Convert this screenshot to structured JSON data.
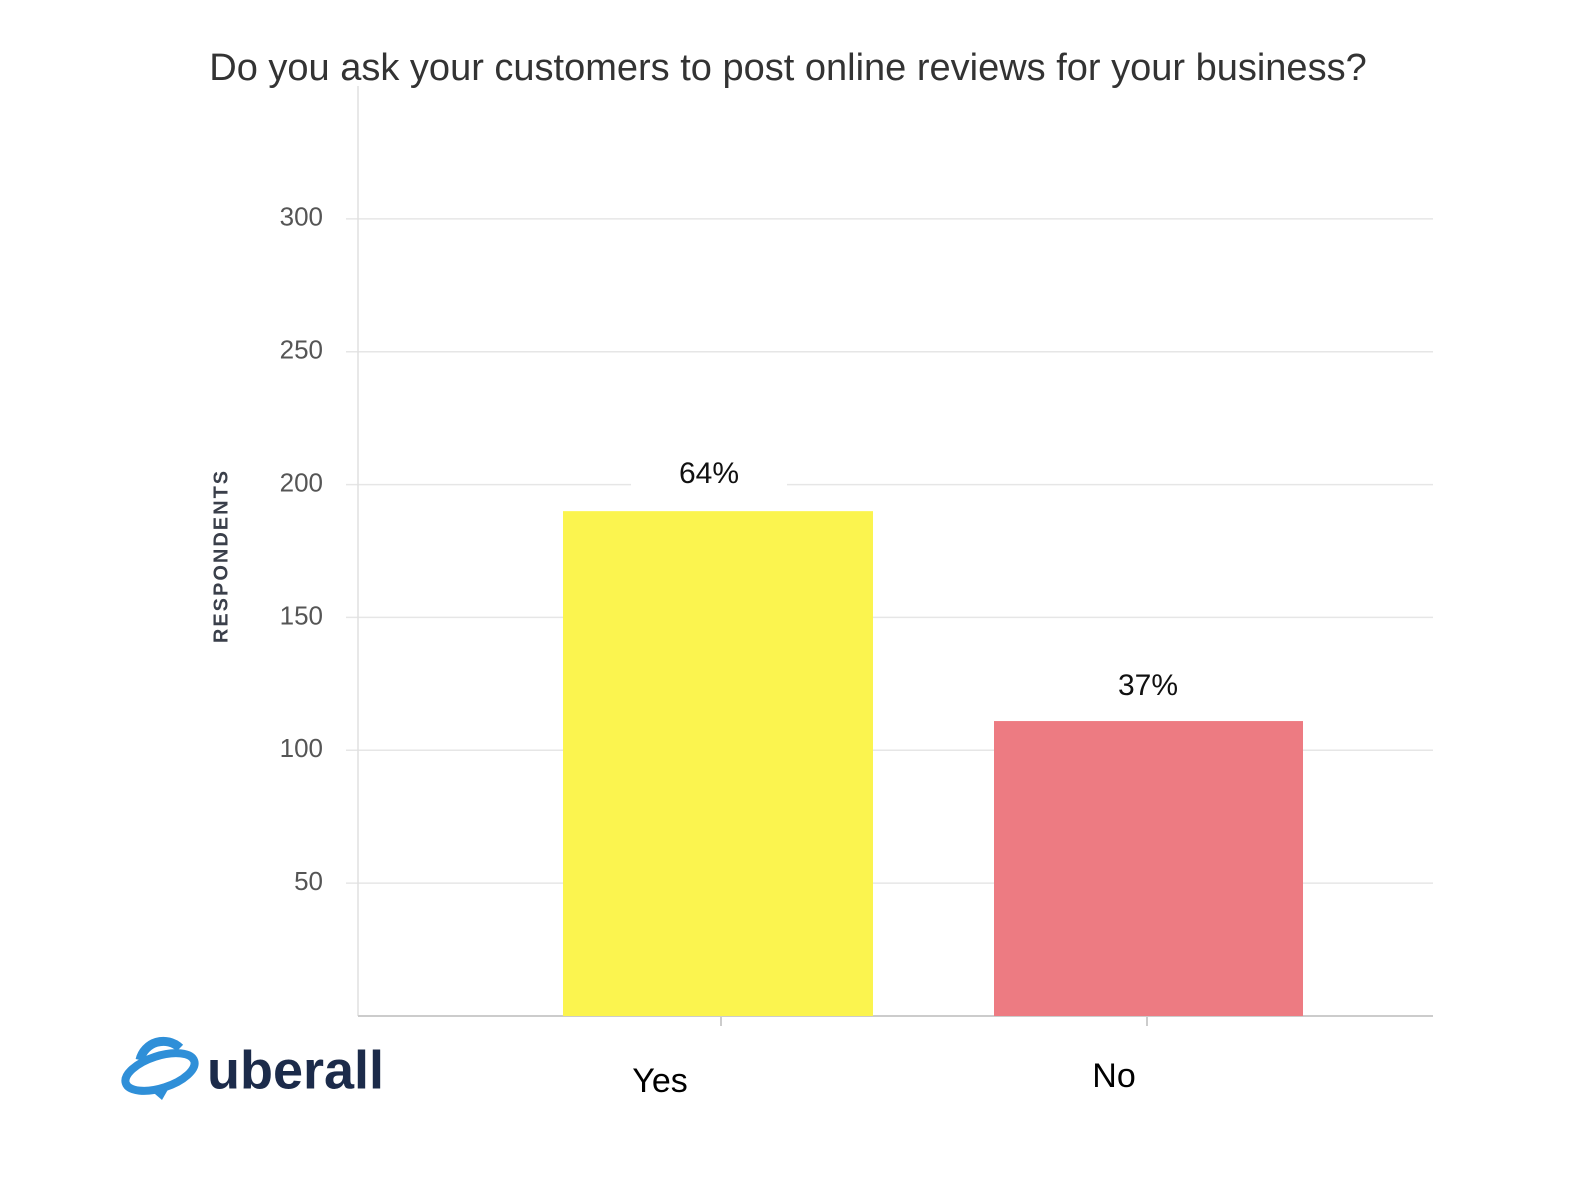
{
  "chart_data": {
    "type": "bar",
    "title": "Do you ask your customers to post online reviews for your business?",
    "y_label": "RESPONDENTS",
    "categories": [
      "Yes",
      "No"
    ],
    "values": [
      190,
      111
    ],
    "annotations": [
      "64%",
      "37%"
    ],
    "colors": [
      "#fbf44f",
      "#ed7b82"
    ],
    "ylim": [
      0,
      350
    ],
    "yticks": [
      50,
      100,
      150,
      200,
      250,
      300
    ],
    "grid": true
  },
  "logo": "uberall"
}
